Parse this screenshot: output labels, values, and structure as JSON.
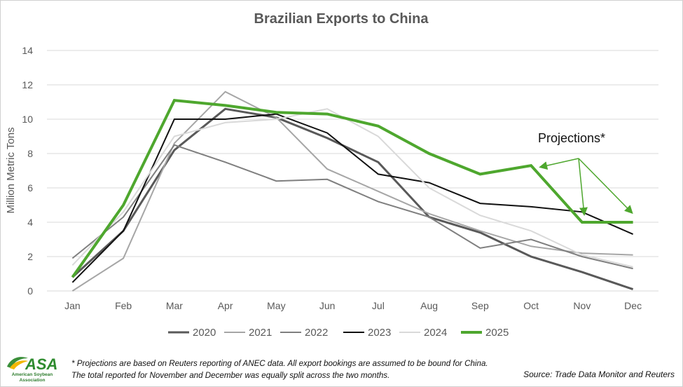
{
  "chart_data": {
    "type": "line",
    "title": "Brazilian Exports to China",
    "xlabel": "",
    "ylabel": "Million Metric Tons",
    "ylim": [
      0,
      14
    ],
    "yticks": [
      0,
      2,
      4,
      6,
      8,
      10,
      12,
      14
    ],
    "categories": [
      "Jan",
      "Feb",
      "Mar",
      "Apr",
      "May",
      "Jun",
      "Jul",
      "Aug",
      "Sep",
      "Oct",
      "Nov",
      "Dec"
    ],
    "series": [
      {
        "name": "2020",
        "color": "#595959",
        "width": 3,
        "values": [
          0.8,
          3.5,
          8.2,
          10.6,
          10.1,
          8.9,
          7.5,
          4.3,
          3.4,
          2.0,
          1.1,
          0.1
        ]
      },
      {
        "name": "2021",
        "color": "#a6a6a6",
        "width": 2,
        "values": [
          0.0,
          1.9,
          8.6,
          11.6,
          10.1,
          7.1,
          5.8,
          4.5,
          3.5,
          2.6,
          2.2,
          2.1
        ]
      },
      {
        "name": "2022",
        "color": "#7f7f7f",
        "width": 2,
        "values": [
          1.9,
          4.3,
          8.5,
          7.5,
          6.4,
          6.5,
          5.2,
          4.3,
          2.5,
          3.0,
          2.0,
          1.3
        ]
      },
      {
        "name": "2023",
        "color": "#111111",
        "width": 2,
        "values": [
          0.5,
          3.5,
          10.0,
          10.0,
          10.3,
          9.2,
          6.8,
          6.3,
          5.1,
          4.9,
          4.6,
          3.3
        ]
      },
      {
        "name": "2024",
        "color": "#d9d9d9",
        "width": 2,
        "values": [
          1.5,
          4.6,
          9.0,
          9.8,
          10.0,
          10.6,
          9.0,
          6.0,
          4.4,
          3.5,
          2.1,
          1.4
        ]
      },
      {
        "name": "2025",
        "color": "#4ea72e",
        "width": 4,
        "values": [
          0.8,
          5.0,
          11.1,
          10.8,
          10.4,
          10.3,
          9.6,
          8.0,
          6.8,
          7.3,
          4.0,
          4.0
        ]
      }
    ],
    "annotation": {
      "text": "Projections*",
      "targets": [
        "Oct",
        "Nov",
        "Dec"
      ]
    },
    "legend_position": "bottom"
  },
  "footnote": "* Projections are based on Reuters reporting of ANEC data. All export bookings are assumed to be bound for China. The total reported for November and December was equally split across the two months.",
  "source": "Source: Trade Data Monitor and Reuters",
  "logo": {
    "abbr": "ASA",
    "line1": "American Soybean",
    "line2": "Association"
  }
}
